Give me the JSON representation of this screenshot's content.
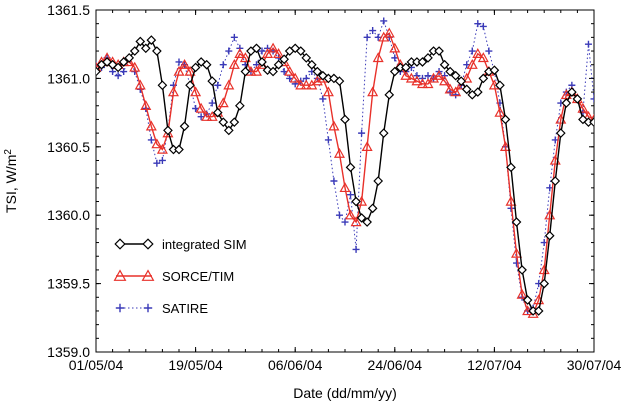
{
  "chart_data": {
    "type": "line",
    "xlabel": "Date (dd/mm/yy)",
    "ylabel": "TSI, W/m",
    "ylabel_superscript": "2",
    "ylim": [
      1359.0,
      1361.5
    ],
    "xlim": [
      "01/05/04",
      "30/07/04"
    ],
    "yticks": [
      1359.0,
      1359.5,
      1360.0,
      1360.5,
      1361.0,
      1361.5
    ],
    "yticks_labels": [
      "1359.0",
      "1359.5",
      "1360.0",
      "1360.5",
      "1361.0",
      "1361.5"
    ],
    "xticks": [
      "01/05/04",
      "19/05/04",
      "06/06/04",
      "24/06/04",
      "12/07/04",
      "30/07/04"
    ],
    "grid": false,
    "legend_position": "lower-left",
    "series": [
      {
        "name": "integrated SIM",
        "color": "#000000",
        "marker": "diamond",
        "line": "solid",
        "x": [
          "01/05/04",
          "02/05/04",
          "03/05/04",
          "04/05/04",
          "05/05/04",
          "06/05/04",
          "07/05/04",
          "08/05/04",
          "09/05/04",
          "10/05/04",
          "11/05/04",
          "12/05/04",
          "13/05/04",
          "14/05/04",
          "15/05/04",
          "16/05/04",
          "17/05/04",
          "18/05/04",
          "19/05/04",
          "20/05/04",
          "21/05/04",
          "22/05/04",
          "23/05/04",
          "24/05/04",
          "25/05/04",
          "26/05/04",
          "27/05/04",
          "28/05/04",
          "29/05/04",
          "30/05/04",
          "31/05/04",
          "01/06/04",
          "02/06/04",
          "03/06/04",
          "04/06/04",
          "05/06/04",
          "06/06/04",
          "07/06/04",
          "08/06/04",
          "09/06/04",
          "10/06/04",
          "11/06/04",
          "12/06/04",
          "13/06/04",
          "14/06/04",
          "15/06/04",
          "16/06/04",
          "17/06/04",
          "18/06/04",
          "19/06/04",
          "20/06/04",
          "21/06/04",
          "22/06/04",
          "23/06/04",
          "24/06/04",
          "25/06/04",
          "26/06/04",
          "27/06/04",
          "28/06/04",
          "29/06/04",
          "30/06/04",
          "01/07/04",
          "02/07/04",
          "03/07/04",
          "04/07/04",
          "05/07/04",
          "06/07/04",
          "07/07/04",
          "08/07/04",
          "09/07/04",
          "10/07/04",
          "11/07/04",
          "12/07/04",
          "13/07/04",
          "14/07/04",
          "15/07/04",
          "16/07/04",
          "17/07/04",
          "18/07/04",
          "19/07/04",
          "20/07/04",
          "21/07/04",
          "22/07/04",
          "23/07/04",
          "24/07/04",
          "25/07/04",
          "26/07/04",
          "27/07/04",
          "28/07/04",
          "29/07/04",
          "30/07/04"
        ],
        "y": [
          1361.05,
          1361.1,
          1361.12,
          1361.1,
          1361.08,
          1361.12,
          1361.15,
          1361.2,
          1361.27,
          1361.22,
          1361.28,
          1361.2,
          1360.95,
          1360.62,
          1360.48,
          1360.48,
          1360.65,
          1360.95,
          1361.08,
          1361.12,
          1361.1,
          1360.98,
          1360.75,
          1360.68,
          1360.62,
          1360.68,
          1360.8,
          1361.05,
          1361.2,
          1361.22,
          1361.12,
          1361.06,
          1361.05,
          1361.1,
          1361.14,
          1361.2,
          1361.22,
          1361.2,
          1361.15,
          1361.1,
          1361.05,
          1361.02,
          1361.0,
          1361.0,
          1360.98,
          1360.7,
          1360.35,
          1360.1,
          1359.98,
          1359.95,
          1360.05,
          1360.25,
          1360.6,
          1360.88,
          1361.05,
          1361.08,
          1361.08,
          1361.12,
          1361.12,
          1361.12,
          1361.15,
          1361.2,
          1361.2,
          1361.1,
          1361.05,
          1361.02,
          1360.98,
          1360.92,
          1360.88,
          1360.9,
          1361.0,
          1361.05,
          1361.06,
          1360.95,
          1360.7,
          1360.35,
          1359.95,
          1359.6,
          1359.38,
          1359.3,
          1359.3,
          1359.5,
          1359.85,
          1360.25,
          1360.6,
          1360.82,
          1360.9,
          1360.85,
          1360.7,
          1360.68,
          1360.68
        ]
      },
      {
        "name": "SORCE/TIM",
        "color": "#e8312a",
        "marker": "triangle",
        "line": "solid",
        "x": [
          "01/05/04",
          "02/05/04",
          "03/05/04",
          "04/05/04",
          "05/05/04",
          "06/05/04",
          "07/05/04",
          "08/05/04",
          "09/05/04",
          "10/05/04",
          "11/05/04",
          "12/05/04",
          "13/05/04",
          "14/05/04",
          "15/05/04",
          "16/05/04",
          "17/05/04",
          "18/05/04",
          "19/05/04",
          "20/05/04",
          "21/05/04",
          "22/05/04",
          "23/05/04",
          "24/05/04",
          "25/05/04",
          "26/05/04",
          "27/05/04",
          "28/05/04",
          "29/05/04",
          "30/05/04",
          "31/05/04",
          "01/06/04",
          "02/06/04",
          "03/06/04",
          "04/06/04",
          "05/06/04",
          "06/06/04",
          "07/06/04",
          "08/06/04",
          "09/06/04",
          "10/06/04",
          "11/06/04",
          "12/06/04",
          "13/06/04",
          "14/06/04",
          "15/06/04",
          "16/06/04",
          "17/06/04",
          "18/06/04",
          "19/06/04",
          "20/06/04",
          "21/06/04",
          "22/06/04",
          "23/06/04",
          "24/06/04",
          "25/06/04",
          "26/06/04",
          "27/06/04",
          "28/06/04",
          "29/06/04",
          "30/06/04",
          "01/07/04",
          "02/07/04",
          "03/07/04",
          "04/07/04",
          "05/07/04",
          "06/07/04",
          "07/07/04",
          "08/07/04",
          "09/07/04",
          "10/07/04",
          "11/07/04",
          "12/07/04",
          "13/07/04",
          "14/07/04",
          "15/07/04",
          "16/07/04",
          "17/07/04",
          "18/07/04",
          "19/07/04",
          "20/07/04",
          "21/07/04",
          "22/07/04",
          "23/07/04",
          "24/07/04",
          "25/07/04",
          "26/07/04",
          "27/07/04",
          "28/07/04",
          "29/07/04",
          "30/07/04"
        ],
        "y": [
          1361.08,
          1361.12,
          1361.15,
          1361.12,
          1361.1,
          1361.12,
          1361.12,
          1361.08,
          1360.95,
          1360.8,
          1360.65,
          1360.52,
          1360.48,
          1360.6,
          1360.9,
          1361.05,
          1361.1,
          1361.05,
          1360.9,
          1360.78,
          1360.72,
          1360.72,
          1360.75,
          1360.82,
          1360.95,
          1361.1,
          1361.18,
          1361.15,
          1361.05,
          1361.05,
          1361.1,
          1361.18,
          1361.22,
          1361.18,
          1361.12,
          1361.05,
          1361.0,
          1360.95,
          1360.95,
          1360.95,
          1360.98,
          1361.0,
          1360.9,
          1360.65,
          1360.45,
          1360.2,
          1360.0,
          1359.95,
          1360.1,
          1360.5,
          1360.9,
          1361.15,
          1361.3,
          1361.33,
          1361.22,
          1361.1,
          1361.02,
          1361.0,
          1360.98,
          1360.96,
          1360.96,
          1361.0,
          1361.02,
          1360.98,
          1360.92,
          1360.9,
          1360.95,
          1361.0,
          1361.1,
          1361.18,
          1361.15,
          1361.05,
          1360.95,
          1360.75,
          1360.5,
          1360.1,
          1359.72,
          1359.42,
          1359.3,
          1359.28,
          1359.38,
          1359.6,
          1360.0,
          1360.4,
          1360.7,
          1360.88,
          1360.9,
          1360.85,
          1360.78,
          1360.72,
          1360.7
        ]
      },
      {
        "name": "SATIRE",
        "color": "#3a3ab8",
        "marker": "plus",
        "line": "dotted",
        "x": [
          "01/05/04",
          "02/05/04",
          "03/05/04",
          "04/05/04",
          "05/05/04",
          "06/05/04",
          "07/05/04",
          "08/05/04",
          "09/05/04",
          "10/05/04",
          "11/05/04",
          "12/05/04",
          "13/05/04",
          "14/05/04",
          "15/05/04",
          "16/05/04",
          "17/05/04",
          "18/05/04",
          "19/05/04",
          "20/05/04",
          "21/05/04",
          "22/05/04",
          "23/05/04",
          "24/05/04",
          "25/05/04",
          "26/05/04",
          "27/05/04",
          "28/05/04",
          "29/05/04",
          "30/05/04",
          "31/05/04",
          "01/06/04",
          "02/06/04",
          "03/06/04",
          "04/06/04",
          "05/06/04",
          "06/06/04",
          "07/06/04",
          "08/06/04",
          "09/06/04",
          "10/06/04",
          "11/06/04",
          "12/06/04",
          "13/06/04",
          "14/06/04",
          "15/06/04",
          "16/06/04",
          "17/06/04",
          "18/06/04",
          "19/06/04",
          "20/06/04",
          "21/06/04",
          "22/06/04",
          "23/06/04",
          "24/06/04",
          "25/06/04",
          "26/06/04",
          "27/06/04",
          "28/06/04",
          "29/06/04",
          "30/06/04",
          "01/07/04",
          "02/07/04",
          "03/07/04",
          "04/07/04",
          "05/07/04",
          "06/07/04",
          "07/07/04",
          "08/07/04",
          "09/07/04",
          "10/07/04",
          "11/07/04",
          "12/07/04",
          "13/07/04",
          "14/07/04",
          "15/07/04",
          "16/07/04",
          "17/07/04",
          "18/07/04",
          "19/07/04",
          "20/07/04",
          "21/07/04",
          "22/07/04",
          "23/07/04",
          "24/07/04",
          "25/07/04",
          "26/07/04",
          "27/07/04",
          "28/07/04",
          "29/07/04",
          "30/07/04"
        ],
        "y": [
          1361.1,
          1361.08,
          1361.15,
          1361.05,
          1361.02,
          1361.05,
          1361.15,
          1361.05,
          1360.92,
          1360.78,
          1360.55,
          1360.38,
          1360.4,
          1360.62,
          1360.95,
          1361.12,
          1361.1,
          1360.95,
          1360.78,
          1360.72,
          1360.74,
          1360.82,
          1360.95,
          1361.1,
          1361.2,
          1361.3,
          1361.22,
          1361.1,
          1361.05,
          1361.1,
          1361.2,
          1361.22,
          1361.2,
          1361.15,
          1361.05,
          1361.0,
          1360.96,
          1360.98,
          1361.0,
          1361.05,
          1361.0,
          1360.85,
          1360.55,
          1360.25,
          1360.0,
          1359.95,
          1360.15,
          1359.75,
          1360.6,
          1361.3,
          1361.35,
          1361.3,
          1361.42,
          1361.3,
          1361.15,
          1361.05,
          1361.05,
          1361.08,
          1361.02,
          1361.0,
          1361.02,
          1361.0,
          1361.05,
          1361.02,
          1360.9,
          1360.88,
          1360.95,
          1361.1,
          1361.2,
          1361.4,
          1361.38,
          1361.2,
          1361.05,
          1360.82,
          1360.5,
          1360.05,
          1359.65,
          1359.4,
          1359.3,
          1359.32,
          1359.5,
          1359.8,
          1360.2,
          1360.55,
          1360.82,
          1360.9,
          1360.95,
          1360.85,
          1360.75,
          1361.25,
          1360.85
        ]
      }
    ]
  }
}
